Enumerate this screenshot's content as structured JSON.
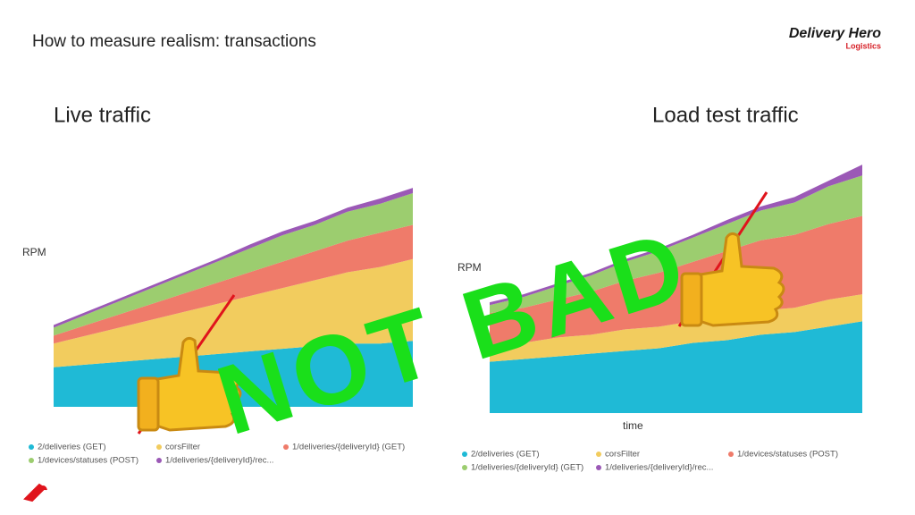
{
  "slide": {
    "title": "How to measure realism: transactions",
    "logo": "Delivery Hero",
    "logo_sub": "Logistics",
    "overlay": "NOT BAD"
  },
  "chart_data": [
    {
      "type": "area",
      "stacked": true,
      "title": "Live traffic",
      "ylabel": "RPM",
      "ylim": [
        0,
        100
      ],
      "series": [
        {
          "name": "2/deliveries (GET)",
          "color": "#1fbad6",
          "values": [
            15,
            16,
            17,
            18,
            19,
            20,
            21,
            22,
            23,
            24,
            24,
            25
          ]
        },
        {
          "name": "corsFilter",
          "color": "#f2cc5e",
          "values": [
            9,
            11,
            13,
            15,
            17,
            19,
            21,
            23,
            25,
            27,
            29,
            31
          ]
        },
        {
          "name": "1/deliveries/{deliveryId} (GET)",
          "color": "#ef7b6a",
          "values": [
            3,
            4,
            5,
            6,
            7,
            8,
            9,
            10,
            11,
            12,
            13,
            13
          ]
        },
        {
          "name": "1/devices/statuses (POST)",
          "color": "#9ccd6f",
          "values": [
            3,
            4,
            5,
            6,
            7,
            8,
            9,
            10,
            10,
            11,
            11,
            12
          ]
        },
        {
          "name": "1/deliveries/{deliveryId}/rec...",
          "color": "#9b59b6",
          "values": [
            1,
            1,
            1,
            1,
            1,
            1,
            1.5,
            1.5,
            1.5,
            1.5,
            2,
            2
          ]
        }
      ]
    },
    {
      "type": "area",
      "stacked": true,
      "title": "Load test traffic",
      "ylabel": "RPM",
      "xlabel": "time",
      "ylim": [
        0,
        100
      ],
      "series": [
        {
          "name": "2/deliveries (GET)",
          "color": "#1fbad6",
          "values": [
            19,
            20,
            21,
            22,
            23,
            24,
            26,
            27,
            29,
            30,
            32,
            34
          ]
        },
        {
          "name": "corsFilter",
          "color": "#f2cc5e",
          "values": [
            6,
            6,
            7,
            7,
            8,
            8,
            8,
            9,
            9,
            9,
            10,
            10
          ]
        },
        {
          "name": "1/devices/statuses (POST)",
          "color": "#ef7b6a",
          "values": [
            12,
            13,
            14,
            16,
            18,
            20,
            22,
            24,
            26,
            27,
            28,
            29
          ]
        },
        {
          "name": "1/deliveries/{deliveryId} (GET)",
          "color": "#9ccd6f",
          "values": [
            3,
            4,
            5,
            6,
            7,
            8,
            9,
            10,
            11,
            12,
            14,
            15
          ]
        },
        {
          "name": "1/deliveries/{deliveryId}/rec...",
          "color": "#9b59b6",
          "values": [
            1,
            1,
            1,
            1,
            1,
            1,
            1,
            1.5,
            1.5,
            2,
            2,
            4
          ]
        }
      ]
    }
  ]
}
